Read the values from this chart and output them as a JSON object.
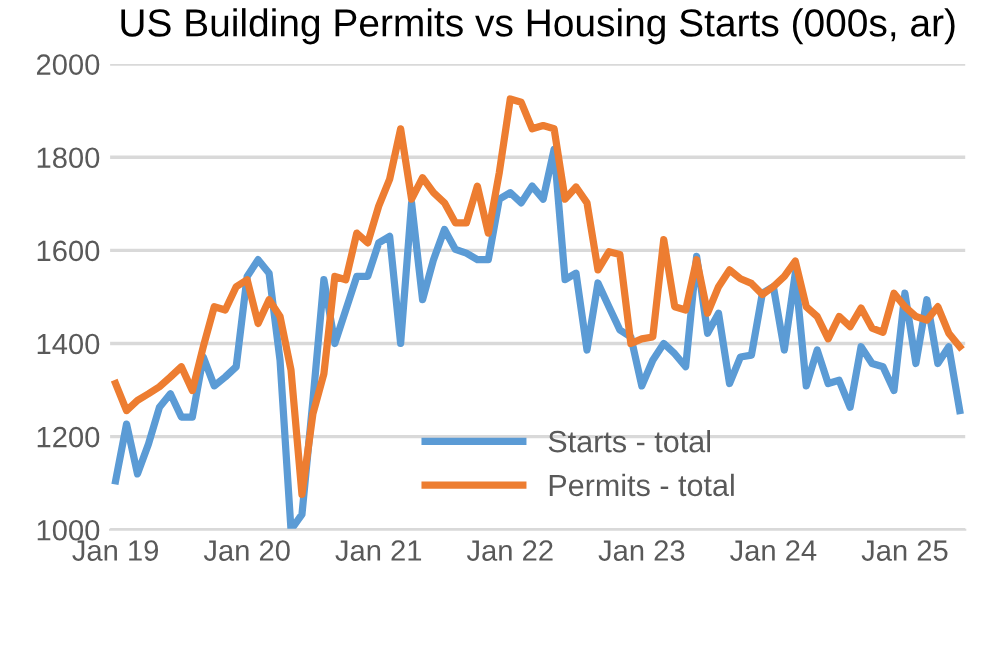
{
  "chart_data": {
    "type": "line",
    "title": "US Building Permits vs Housing Starts (000s, ar)",
    "categories": [
      "Jan 19",
      null,
      null,
      null,
      null,
      null,
      null,
      null,
      null,
      null,
      null,
      null,
      "Jan 20",
      null,
      null,
      null,
      null,
      null,
      null,
      null,
      null,
      null,
      null,
      null,
      "Jan 21",
      null,
      null,
      null,
      null,
      null,
      null,
      null,
      null,
      null,
      null,
      null,
      "Jan 22",
      null,
      null,
      null,
      null,
      null,
      null,
      null,
      null,
      null,
      null,
      null,
      "Jan 23",
      null,
      null,
      null,
      null,
      null,
      null,
      null,
      null,
      null,
      null,
      null,
      "Jan 24",
      null,
      null,
      null,
      null,
      null,
      null,
      null,
      null,
      null,
      null,
      null,
      "Jan 25",
      null,
      null,
      null,
      null,
      null
    ],
    "series": [
      {
        "name": "Starts - total",
        "color": "#5b9bd5",
        "values": [
          1105,
          1227,
          1120,
          1184,
          1263,
          1292,
          1242,
          1242,
          1371,
          1309,
          1328,
          1350,
          1544,
          1580,
          1551,
          1364,
          1000,
          1033,
          1278,
          1537,
          1400,
          1472,
          1544,
          1544,
          1616,
          1630,
          1400,
          1702,
          1494,
          1580,
          1645,
          1602,
          1594,
          1580,
          1580,
          1710,
          1724,
          1702,
          1738,
          1710,
          1817,
          1537,
          1551,
          1386,
          1530,
          1479,
          1429,
          1414,
          1309,
          1364,
          1400,
          1378,
          1350,
          1587,
          1422,
          1465,
          1314,
          1371,
          1375,
          1508,
          1522,
          1386,
          1551,
          1309,
          1386,
          1314,
          1321,
          1263,
          1393,
          1357,
          1350,
          1299,
          1508,
          1357,
          1494,
          1357,
          1393,
          1256
        ]
      },
      {
        "name": "Permits - total",
        "color": "#ed7d31",
        "values": [
          1314,
          1256,
          1278,
          1292,
          1307,
          1328,
          1350,
          1299,
          1393,
          1479,
          1472,
          1522,
          1537,
          1443,
          1494,
          1458,
          1343,
          1076,
          1249,
          1335,
          1544,
          1537,
          1637,
          1616,
          1695,
          1753,
          1861,
          1710,
          1756,
          1724,
          1702,
          1659,
          1659,
          1738,
          1637,
          1767,
          1925,
          1918,
          1861,
          1868,
          1861,
          1710,
          1736,
          1702,
          1558,
          1597,
          1591,
          1400,
          1410,
          1414,
          1623,
          1479,
          1472,
          1580,
          1465,
          1522,
          1558,
          1539,
          1529,
          1505,
          1522,
          1544,
          1577,
          1479,
          1458,
          1410,
          1458,
          1436,
          1476,
          1433,
          1424,
          1508,
          1479,
          1458,
          1450,
          1479,
          1422,
          1393
        ]
      }
    ],
    "ylim": [
      1000,
      2000
    ],
    "yticks": [
      1000,
      1200,
      1400,
      1600,
      1800,
      2000
    ],
    "grid": "y",
    "legend": "bottom",
    "marker": "none",
    "line_style": "solid"
  }
}
